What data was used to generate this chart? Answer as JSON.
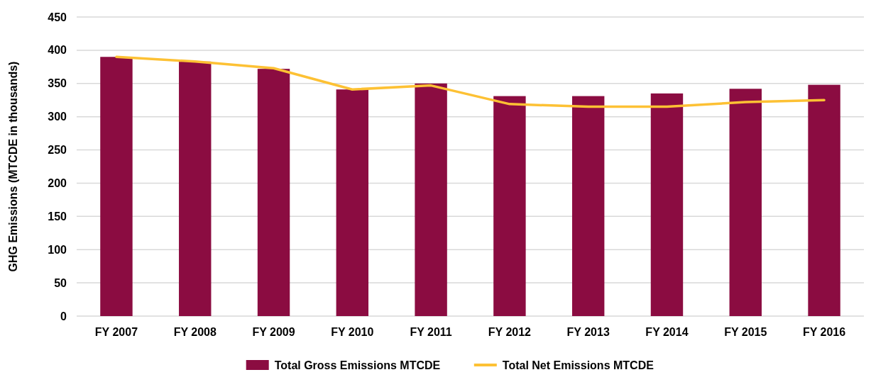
{
  "chart_data": {
    "type": "bar",
    "ylabel": "GHG Emissions (MTCDE in thousands)",
    "categories": [
      "FY 2007",
      "FY 2008",
      "FY 2009",
      "FY 2010",
      "FY 2011",
      "FY 2012",
      "FY 2013",
      "FY 2014",
      "FY 2015",
      "FY 2016"
    ],
    "series": [
      {
        "name": "Total Gross Emissions MTCDE",
        "color": "#8b0c41",
        "values": [
          390,
          383,
          372,
          341,
          350,
          331,
          331,
          335,
          342,
          348
        ]
      },
      {
        "name": "Total Net Emissions MTCDE",
        "type": "line",
        "color": "#fdc134",
        "values": [
          390,
          383,
          373,
          341,
          347,
          319,
          315,
          315,
          322,
          325
        ]
      }
    ],
    "ylim": [
      0,
      450
    ],
    "yticks": [
      0,
      50,
      100,
      150,
      200,
      250,
      300,
      350,
      400,
      450
    ],
    "grid": "y",
    "legend": "bottom",
    "marker": "none",
    "line_style": "solid"
  }
}
